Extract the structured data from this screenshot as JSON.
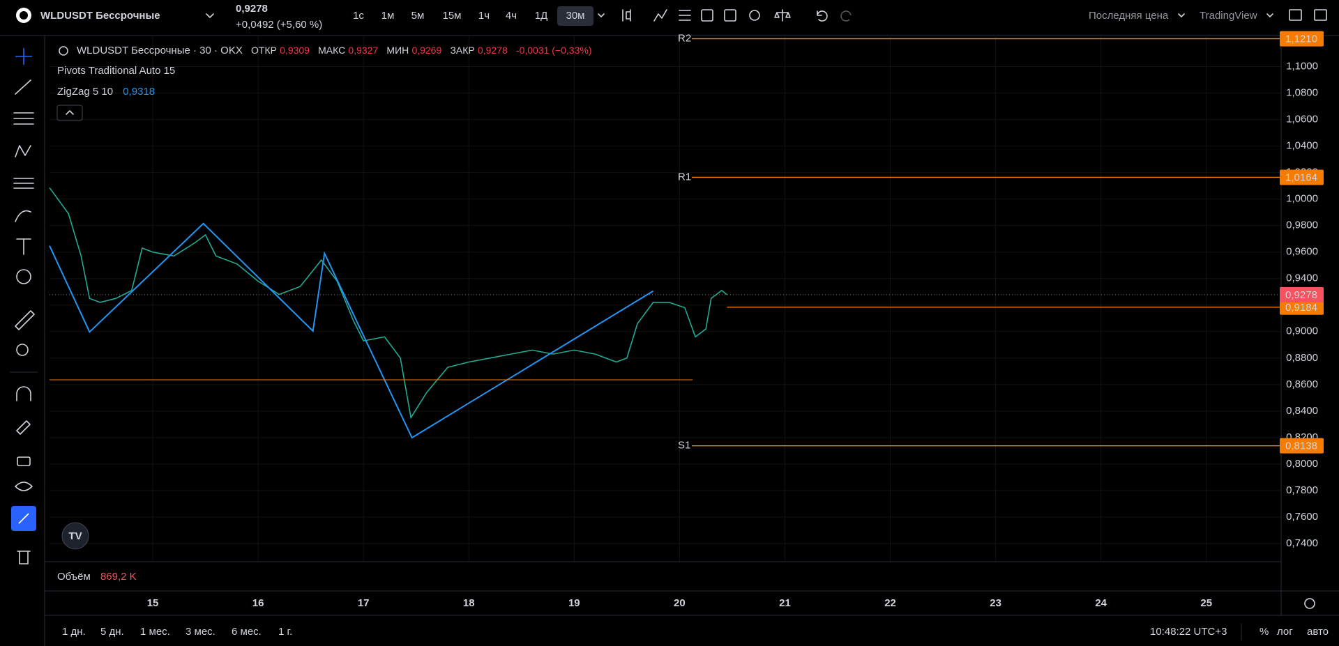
{
  "header": {
    "symbol": "WLDUSDT Бессрочные",
    "price": "0,9278",
    "change": "+0,0492 (+5,60 %)",
    "intervals": [
      "1с",
      "1м",
      "5м",
      "15м",
      "1ч",
      "4ч",
      "1Д",
      "30м"
    ],
    "price_source": "Последняя цена",
    "provider": "TradingView"
  },
  "legend": {
    "title": "WLDUSDT Бессрочные · 30 · OKX",
    "open_label": "ОТКР",
    "open": "0,9309",
    "high_label": "МАКС",
    "high": "0,9327",
    "low_label": "МИН",
    "low": "0,9269",
    "close_label": "ЗАКР",
    "close": "0,9278",
    "change": "-0,0031 (−0,33%)",
    "pivots": "Pivots Traditional Auto 15",
    "zigzag": "ZigZag 5 10",
    "zigzag_value": "0,9318"
  },
  "volume": {
    "label": "Объём",
    "value": "869,2 K"
  },
  "footer": {
    "ranges": [
      "1 дн.",
      "5 дн.",
      "1 мес.",
      "3 мес.",
      "6 мес.",
      "1 г."
    ],
    "time": "10:48:22 UTC+3",
    "percent": "%",
    "log": "лог",
    "auto": "авто"
  },
  "chart_data": {
    "type": "line",
    "color": "#22ab94",
    "grid": true,
    "x": [
      14.02,
      14.2,
      14.32,
      14.4,
      14.5,
      14.65,
      14.8,
      14.9,
      15.0,
      15.2,
      15.4,
      15.5,
      15.6,
      15.8,
      16.0,
      16.2,
      16.4,
      16.5,
      16.6,
      16.75,
      16.9,
      17.0,
      17.2,
      17.35,
      17.45,
      17.6,
      17.8,
      18.0,
      18.2,
      18.4,
      18.6,
      18.8,
      19.0,
      19.2,
      19.4,
      19.5,
      19.6,
      19.75,
      19.9,
      20.05,
      20.15,
      20.25,
      20.3,
      20.4,
      20.45
    ],
    "values": [
      1.0086,
      0.989,
      0.957,
      0.925,
      0.922,
      0.925,
      0.931,
      0.963,
      0.96,
      0.957,
      0.967,
      0.973,
      0.957,
      0.951,
      0.938,
      0.928,
      0.934,
      0.944,
      0.954,
      0.938,
      0.909,
      0.893,
      0.896,
      0.88,
      0.835,
      0.854,
      0.873,
      0.877,
      0.88,
      0.883,
      0.886,
      0.883,
      0.886,
      0.883,
      0.877,
      0.88,
      0.906,
      0.922,
      0.922,
      0.918,
      0.896,
      0.902,
      0.925,
      0.931,
      0.9278
    ],
    "zigzag": {
      "color": "#2196f3",
      "x": [
        14.02,
        14.4,
        15.48,
        16.52,
        16.63,
        17.46,
        19.75
      ],
      "values": [
        0.9648,
        0.8997,
        0.9815,
        0.9004,
        0.959,
        0.8199,
        0.9306
      ]
    },
    "levels_color": "#f57c00",
    "levels": [
      {
        "name": "R2",
        "value": 1.121,
        "label": "1,1210"
      },
      {
        "name": "R1",
        "value": 1.0164,
        "label": "1,0164"
      },
      {
        "value": 0.9184,
        "label": "0,9184"
      },
      {
        "name": "S1",
        "value": 0.8138,
        "label": "0,8138"
      },
      {
        "value": 0.8636
      }
    ],
    "last_price": {
      "value": 0.9278,
      "label": "0,9278",
      "color": "#f7525f"
    },
    "xlim": [
      14.02,
      25.71
    ],
    "xticks": [
      15,
      16,
      17,
      18,
      19,
      20,
      21,
      22,
      23,
      24,
      25
    ],
    "ylim": [
      0.7263,
      1.1229
    ],
    "yticks": [
      {
        "value": 0.74,
        "label": "0,7400"
      },
      {
        "value": 0.76,
        "label": "0,7600"
      },
      {
        "value": 0.78,
        "label": "0,7800"
      },
      {
        "value": 0.8,
        "label": "0,8000"
      },
      {
        "value": 0.82,
        "label": "0,8200"
      },
      {
        "value": 0.84,
        "label": "0,8400"
      },
      {
        "value": 0.86,
        "label": "0,8600"
      },
      {
        "value": 0.88,
        "label": "0,8800"
      },
      {
        "value": 0.9,
        "label": "0,9000"
      },
      {
        "value": 0.92,
        "label": "0,9200"
      },
      {
        "value": 0.94,
        "label": "0,9400"
      },
      {
        "value": 0.96,
        "label": "0,9600"
      },
      {
        "value": 0.98,
        "label": "0,9800"
      },
      {
        "value": 1.0,
        "label": "1,0000"
      },
      {
        "value": 1.02,
        "label": "1,0200"
      },
      {
        "value": 1.04,
        "label": "1,0400"
      },
      {
        "value": 1.06,
        "label": "1,0600"
      },
      {
        "value": 1.08,
        "label": "1,0800"
      },
      {
        "value": 1.1,
        "label": "1,1000"
      }
    ]
  }
}
